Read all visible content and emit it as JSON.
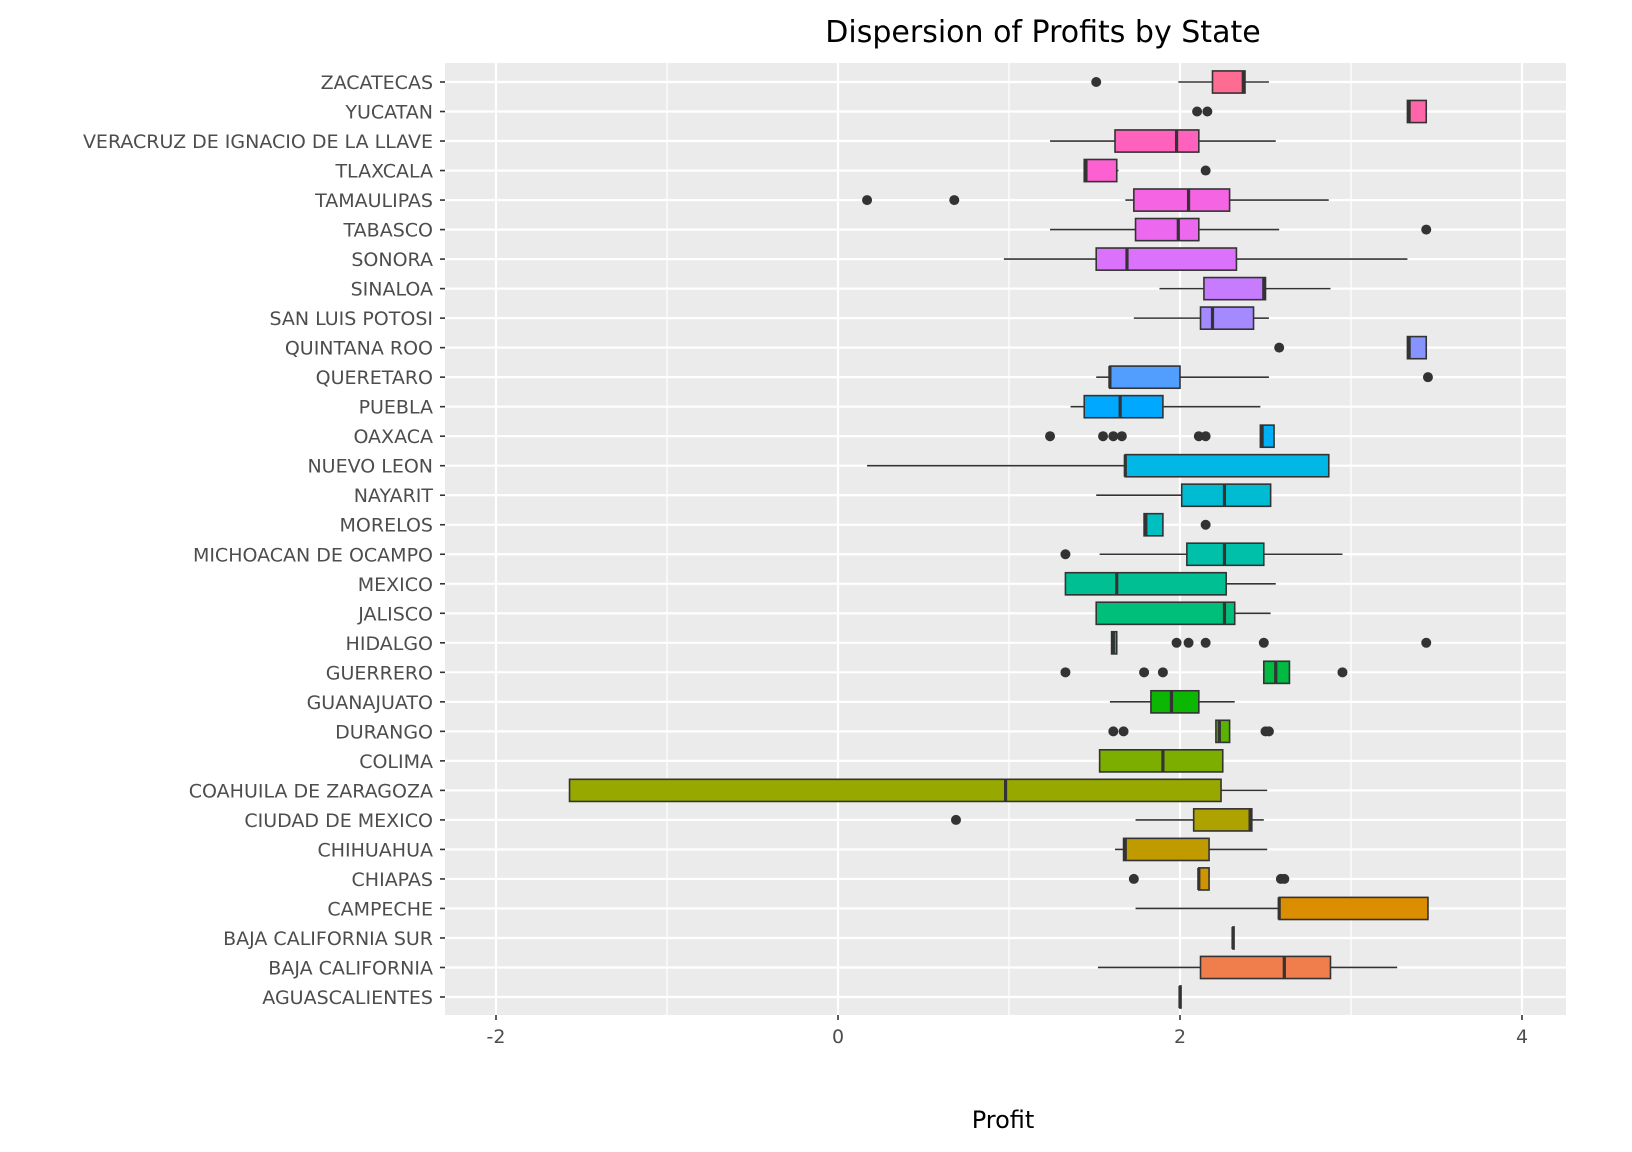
{
  "chart_data": {
    "type": "boxplot",
    "orientation": "horizontal",
    "title": "Dispersion of Profits by State",
    "xlabel": "Profit",
    "ylabel": "",
    "xlim": [
      -2.3,
      4.3
    ],
    "x_ticks": [
      -2,
      0,
      2,
      4
    ],
    "x_tick_labels": [
      "-2",
      "0",
      "2",
      "4"
    ],
    "grid": true,
    "legend": "none",
    "categories": [
      "AGUASCALIENTES",
      "BAJA CALIFORNIA",
      "BAJA CALIFORNIA SUR",
      "CAMPECHE",
      "CHIAPAS",
      "CHIHUAHUA",
      "CIUDAD DE MEXICO",
      "COAHUILA DE ZARAGOZA",
      "COLIMA",
      "DURANGO",
      "GUANAJUATO",
      "GUERRERO",
      "HIDALGO",
      "JALISCO",
      "MEXICO",
      "MICHOACAN DE OCAMPO",
      "MORELOS",
      "NAYARIT",
      "NUEVO LEON",
      "OAXACA",
      "PUEBLA",
      "QUERETARO",
      "QUINTANA ROO",
      "SAN LUIS POTOSI",
      "SINALOA",
      "SONORA",
      "TABASCO",
      "TAMAULIPAS",
      "TLAXCALA",
      "VERACRUZ DE IGNACIO DE LA LLAVE",
      "YUCATAN",
      "ZACATECAS"
    ],
    "boxes": [
      {
        "state": "AGUASCALIENTES",
        "whisker_low": 2.0,
        "q1": 2.0,
        "median": 2.0,
        "q3": 2.0,
        "whisker_high": 2.0,
        "outliers": [],
        "color": "#F8766D"
      },
      {
        "state": "BAJA CALIFORNIA",
        "whisker_low": 1.52,
        "q1": 2.12,
        "median": 2.61,
        "q3": 2.88,
        "whisker_high": 3.27,
        "outliers": [],
        "color": "#F07E4C"
      },
      {
        "state": "BAJA CALIFORNIA SUR",
        "whisker_low": 2.31,
        "q1": 2.31,
        "median": 2.31,
        "q3": 2.31,
        "whisker_high": 2.31,
        "outliers": [],
        "color": "#E7851E"
      },
      {
        "state": "CAMPECHE",
        "whisker_low": 1.74,
        "q1": 2.58,
        "median": 2.58,
        "q3": 3.45,
        "whisker_high": 3.45,
        "outliers": [],
        "color": "#DB8E00"
      },
      {
        "state": "CHIAPAS",
        "whisker_low": 2.11,
        "q1": 2.11,
        "median": 2.11,
        "q3": 2.17,
        "whisker_high": 2.17,
        "outliers": [
          1.73,
          2.59,
          2.61
        ],
        "color": "#CF9400"
      },
      {
        "state": "CHIHUAHUA",
        "whisker_low": 1.62,
        "q1": 1.67,
        "median": 1.68,
        "q3": 2.17,
        "whisker_high": 2.51,
        "outliers": [],
        "color": "#BF9B00"
      },
      {
        "state": "CIUDAD DE MEXICO",
        "whisker_low": 1.74,
        "q1": 2.08,
        "median": 2.41,
        "q3": 2.42,
        "whisker_high": 2.49,
        "outliers": [
          0.69
        ],
        "color": "#ADA200"
      },
      {
        "state": "COAHUILA DE ZARAGOZA",
        "whisker_low": -1.57,
        "q1": -1.57,
        "median": 0.98,
        "q3": 2.24,
        "whisker_high": 2.51,
        "outliers": [],
        "color": "#97A900"
      },
      {
        "state": "COLIMA",
        "whisker_low": 1.53,
        "q1": 1.53,
        "median": 1.9,
        "q3": 2.25,
        "whisker_high": 2.25,
        "outliers": [],
        "color": "#7CAE00"
      },
      {
        "state": "DURANGO",
        "whisker_low": 2.21,
        "q1": 2.21,
        "median": 2.23,
        "q3": 2.29,
        "whisker_high": 2.29,
        "outliers": [
          1.61,
          1.67,
          2.5,
          2.52
        ],
        "color": "#59B300"
      },
      {
        "state": "GUANAJUATO",
        "whisker_low": 1.59,
        "q1": 1.83,
        "median": 1.95,
        "q3": 2.11,
        "whisker_high": 2.32,
        "outliers": [],
        "color": "#0BB702"
      },
      {
        "state": "GUERRERO",
        "whisker_low": 2.49,
        "q1": 2.49,
        "median": 2.56,
        "q3": 2.64,
        "whisker_high": 2.64,
        "outliers": [
          1.33,
          1.79,
          1.9,
          2.95
        ],
        "color": "#00BA42"
      },
      {
        "state": "HIDALGO",
        "whisker_low": 1.6,
        "q1": 1.6,
        "median": 1.61,
        "q3": 1.63,
        "whisker_high": 1.63,
        "outliers": [
          1.98,
          2.05,
          2.15,
          2.49,
          3.44
        ],
        "color": "#00BD5F"
      },
      {
        "state": "JALISCO",
        "whisker_low": 1.51,
        "q1": 1.51,
        "median": 2.26,
        "q3": 2.32,
        "whisker_high": 2.53,
        "outliers": [],
        "color": "#00BF7A"
      },
      {
        "state": "MEXICO",
        "whisker_low": 1.33,
        "q1": 1.33,
        "median": 1.63,
        "q3": 2.27,
        "whisker_high": 2.56,
        "outliers": [],
        "color": "#00C093"
      },
      {
        "state": "MICHOACAN DE OCAMPO",
        "whisker_low": 1.53,
        "q1": 2.04,
        "median": 2.26,
        "q3": 2.49,
        "whisker_high": 2.95,
        "outliers": [
          1.33
        ],
        "color": "#00C0AA"
      },
      {
        "state": "MORELOS",
        "whisker_low": 1.79,
        "q1": 1.79,
        "median": 1.8,
        "q3": 1.9,
        "whisker_high": 1.9,
        "outliers": [
          2.15
        ],
        "color": "#00BFC0"
      },
      {
        "state": "NAYARIT",
        "whisker_low": 1.51,
        "q1": 2.01,
        "median": 2.26,
        "q3": 2.53,
        "whisker_high": 2.53,
        "outliers": [],
        "color": "#00BCD3"
      },
      {
        "state": "NUEVO LEON",
        "whisker_low": 0.17,
        "q1": 1.68,
        "median": 1.68,
        "q3": 2.87,
        "whisker_high": 2.87,
        "outliers": [],
        "color": "#00B7E5"
      },
      {
        "state": "OAXACA",
        "whisker_low": 2.47,
        "q1": 2.47,
        "median": 2.48,
        "q3": 2.55,
        "whisker_high": 2.55,
        "outliers": [
          1.24,
          1.55,
          1.61,
          1.66,
          2.11,
          2.15
        ],
        "color": "#00B0F6"
      },
      {
        "state": "PUEBLA",
        "whisker_low": 1.36,
        "q1": 1.44,
        "median": 1.65,
        "q3": 1.9,
        "whisker_high": 2.47,
        "outliers": [],
        "color": "#00A8FF"
      },
      {
        "state": "QUERETARO",
        "whisker_low": 1.51,
        "q1": 1.59,
        "median": 1.59,
        "q3": 2.0,
        "whisker_high": 2.52,
        "outliers": [
          3.45
        ],
        "color": "#529EFF"
      },
      {
        "state": "QUINTANA ROO",
        "whisker_low": 3.33,
        "q1": 3.33,
        "median": 3.34,
        "q3": 3.44,
        "whisker_high": 3.44,
        "outliers": [
          2.58
        ],
        "color": "#8794FF"
      },
      {
        "state": "SAN LUIS POTOSI",
        "whisker_low": 1.73,
        "q1": 2.12,
        "median": 2.19,
        "q3": 2.43,
        "whisker_high": 2.52,
        "outliers": [],
        "color": "#A58AFF"
      },
      {
        "state": "SINALOA",
        "whisker_low": 1.88,
        "q1": 2.14,
        "median": 2.49,
        "q3": 2.5,
        "whisker_high": 2.88,
        "outliers": [],
        "color": "#C77CFF"
      },
      {
        "state": "SONORA",
        "whisker_low": 0.97,
        "q1": 1.51,
        "median": 1.69,
        "q3": 2.33,
        "whisker_high": 3.33,
        "outliers": [],
        "color": "#DB72FB"
      },
      {
        "state": "TABASCO",
        "whisker_low": 1.24,
        "q1": 1.74,
        "median": 1.99,
        "q3": 2.11,
        "whisker_high": 2.58,
        "outliers": [
          3.44
        ],
        "color": "#EB68EF"
      },
      {
        "state": "TAMAULIPAS",
        "whisker_low": 1.68,
        "q1": 1.73,
        "median": 2.05,
        "q3": 2.29,
        "whisker_high": 2.87,
        "outliers": [
          0.17,
          0.68
        ],
        "color": "#F564E3"
      },
      {
        "state": "TLAXCALA",
        "whisker_low": 1.44,
        "q1": 1.44,
        "median": 1.45,
        "q3": 1.63,
        "whisker_high": 1.64,
        "outliers": [
          2.15
        ],
        "color": "#FD61D1"
      },
      {
        "state": "VERACRUZ DE IGNACIO DE LA LLAVE",
        "whisker_low": 1.24,
        "q1": 1.62,
        "median": 1.98,
        "q3": 2.11,
        "whisker_high": 2.56,
        "outliers": [],
        "color": "#FF62BC"
      },
      {
        "state": "YUCATAN",
        "whisker_low": 3.33,
        "q1": 3.33,
        "median": 3.34,
        "q3": 3.44,
        "whisker_high": 3.44,
        "outliers": [
          2.1,
          2.16
        ],
        "color": "#FF65A9"
      },
      {
        "state": "ZACATECAS",
        "whisker_low": 1.99,
        "q1": 2.19,
        "median": 2.37,
        "q3": 2.38,
        "whisker_high": 2.52,
        "outliers": [
          1.51
        ],
        "color": "#FF6C91"
      }
    ]
  }
}
